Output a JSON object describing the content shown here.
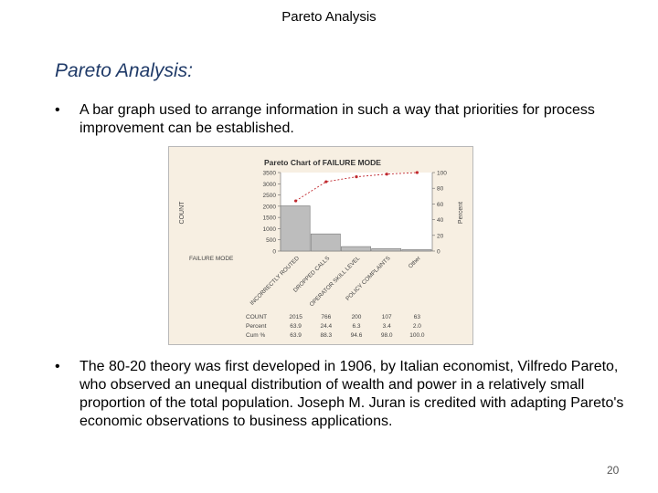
{
  "header": {
    "title": "Pareto Analysis"
  },
  "slide": {
    "title": "Pareto Analysis:",
    "bullet_symbol": "•",
    "bullets": [
      "A bar graph used to arrange information in such a way that priorities for process improvement can be established.",
      "The 80-20 theory was first developed in 1906, by Italian economist, Vilfredo Pareto, who observed an unequal distribution of wealth and power in a relatively small proportion of the total population. Joseph M. Juran is credited with adapting Pareto's economic observations to business applications."
    ],
    "page_number": "20"
  },
  "chart_data": {
    "type": "bar",
    "title": "Pareto Chart of FAILURE MODE",
    "ylabel": "COUNT",
    "y2label": "Percent",
    "xlabel": "FAILURE MODE",
    "ylim": [
      0,
      3500
    ],
    "y2lim": [
      0,
      100
    ],
    "yticks": [
      "3500",
      "3000",
      "2500",
      "2000",
      "1500",
      "1000",
      "500",
      "0"
    ],
    "y2ticks": [
      "100",
      "80",
      "60",
      "40",
      "20",
      "0"
    ],
    "categories": [
      "INCORRECTLY ROUTED",
      "DROPPED CALLS",
      "OPERATOR SKILL LEVEL",
      "POLICY COMPLAINTS",
      "Other"
    ],
    "values": [
      2015,
      766,
      200,
      107,
      63
    ],
    "cumulative_percent": [
      63.9,
      88.3,
      94.6,
      98.0,
      100.0
    ],
    "bar_color": "#bdbdbd",
    "line_color": "#c0282e",
    "table": {
      "row_labels": [
        "COUNT",
        "Percent",
        "Cum %"
      ],
      "rows": [
        [
          "2015",
          "766",
          "200",
          "107",
          "63"
        ],
        [
          "63.9",
          "24.4",
          "6.3",
          "3.4",
          "2.0"
        ],
        [
          "63.9",
          "88.3",
          "94.6",
          "98.0",
          "100.0"
        ]
      ]
    }
  }
}
